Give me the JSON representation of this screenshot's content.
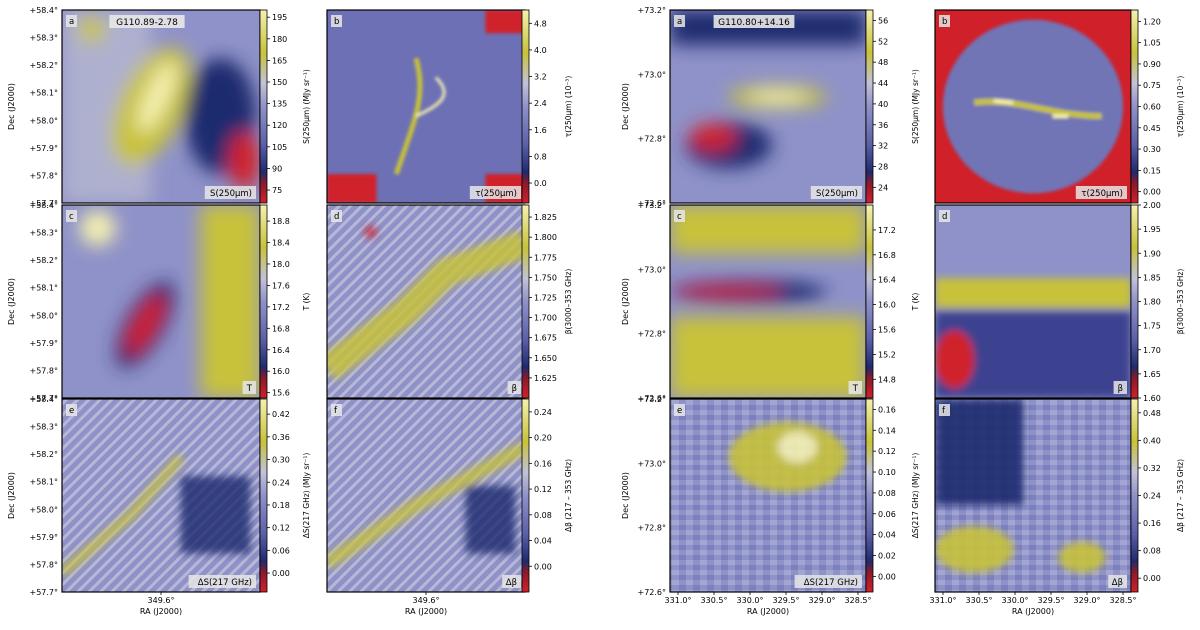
{
  "colors": {
    "low": "#d0202a",
    "dark": "#1e2a6e",
    "mid": "#8f92c8",
    "mid_light": "#c2c2d8",
    "high": "#c8c23a",
    "peak": "#f5f1b0"
  },
  "chart_data": [
    {
      "type": "heatmap",
      "field": "G110.89-2.78",
      "xlabel": "RA (J2000)",
      "ylabel": "Dec (J2000)",
      "x_ticks": [
        "349.6°"
      ],
      "y_ticks": [
        "+58.4°",
        "+58.3°",
        "+58.2°",
        "+58.1°",
        "+58.0°",
        "+57.9°",
        "+57.8°",
        "+57.7°"
      ],
      "panels": [
        {
          "letter": "a",
          "title": "G110.89-2.78",
          "tag": "S(250μm)",
          "cbar_label": "S(250μm) (MJy sr⁻¹)",
          "ticks": [
            "195",
            "180",
            "165",
            "150",
            "135",
            "120",
            "105",
            "90",
            "75"
          ],
          "range": [
            66,
            200
          ]
        },
        {
          "letter": "b",
          "title": "",
          "tag": "τ(250μm)",
          "cbar_label": "τ(250μm) (10⁻³)",
          "ticks": [
            "4.8",
            "4.0",
            "3.2",
            "2.4",
            "1.6",
            "0.8",
            "0.0"
          ],
          "range": [
            -0.6,
            5.2
          ]
        },
        {
          "letter": "c",
          "title": "",
          "tag": "T",
          "cbar_label": "T (K)",
          "ticks": [
            "18.8",
            "18.4",
            "18.0",
            "17.6",
            "17.2",
            "16.8",
            "16.4",
            "16.0",
            "15.6"
          ],
          "range": [
            15.5,
            19.1
          ]
        },
        {
          "letter": "d",
          "title": "",
          "tag": "β",
          "cbar_label": "β(3000–353 GHz)",
          "ticks": [
            "1.825",
            "1.800",
            "1.775",
            "1.750",
            "1.725",
            "1.700",
            "1.675",
            "1.650",
            "1.625"
          ],
          "range": [
            1.6,
            1.84
          ]
        },
        {
          "letter": "e",
          "title": "",
          "tag": "ΔS(217 GHz)",
          "cbar_label": "ΔS(217 GHz) (MJy sr⁻¹)",
          "ticks": [
            "0.42",
            "0.36",
            "0.30",
            "0.24",
            "0.18",
            "0.12",
            "0.06",
            "0.00"
          ],
          "range": [
            -0.05,
            0.46
          ]
        },
        {
          "letter": "f",
          "title": "",
          "tag": "Δβ",
          "cbar_label": "Δβ (217 – 353 GHz)",
          "ticks": [
            "0.24",
            "0.20",
            "0.16",
            "0.12",
            "0.08",
            "0.04",
            "0.00"
          ],
          "range": [
            -0.04,
            0.26
          ]
        }
      ]
    },
    {
      "type": "heatmap",
      "field": "G110.80+14.16",
      "xlabel": "RA (J2000)",
      "ylabel": "Dec (J2000)",
      "x_ticks": [
        "331.0°",
        "330.5°",
        "330.0°",
        "329.5°",
        "329.0°",
        "328.5°"
      ],
      "y_ticks": [
        "+73.2°",
        "+73.0°",
        "+72.8°",
        "+72.6°"
      ],
      "panels": [
        {
          "letter": "a",
          "title": "G110.80+14.16",
          "tag": "S(250μm)",
          "cbar_label": "S(250μm) (MJy sr⁻¹)",
          "ticks": [
            "56",
            "52",
            "48",
            "44",
            "40",
            "36",
            "32",
            "28",
            "24"
          ],
          "range": [
            21,
            58
          ]
        },
        {
          "letter": "b",
          "title": "",
          "tag": "τ(250μm)",
          "cbar_label": "τ(250μm) (10⁻³)",
          "ticks": [
            "1.20",
            "1.05",
            "0.90",
            "0.75",
            "0.60",
            "0.45",
            "0.30",
            "0.15",
            "0.00"
          ],
          "range": [
            -0.08,
            1.28
          ]
        },
        {
          "letter": "c",
          "title": "",
          "tag": "T",
          "cbar_label": "T (K)",
          "ticks": [
            "17.2",
            "16.8",
            "16.4",
            "16.0",
            "15.6",
            "15.2",
            "14.8"
          ],
          "range": [
            14.5,
            17.6
          ]
        },
        {
          "letter": "d",
          "title": "",
          "tag": "β",
          "cbar_label": "β(3000–353 GHz)",
          "ticks": [
            "2.00",
            "1.95",
            "1.90",
            "1.85",
            "1.80",
            "1.75",
            "1.70",
            "1.65",
            "1.60"
          ],
          "range": [
            1.6,
            2.0
          ]
        },
        {
          "letter": "e",
          "title": "",
          "tag": "ΔS(217 GHz)",
          "cbar_label": "ΔS(217 GHz) (MJy sr⁻¹)",
          "ticks": [
            "0.16",
            "0.14",
            "0.12",
            "0.10",
            "0.08",
            "0.06",
            "0.04",
            "0.02",
            "0.00"
          ],
          "range": [
            -0.015,
            0.17
          ]
        },
        {
          "letter": "f",
          "title": "",
          "tag": "Δβ",
          "cbar_label": "Δβ (217 – 353 GHz)",
          "ticks": [
            "0.48",
            "0.40",
            "0.32",
            "0.24",
            "0.16",
            "0.08",
            "0.00"
          ],
          "range": [
            -0.04,
            0.52
          ]
        }
      ]
    }
  ]
}
